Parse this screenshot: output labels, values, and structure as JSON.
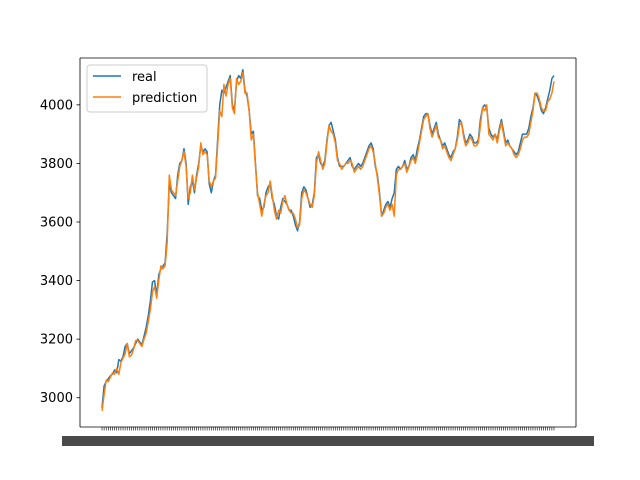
{
  "chart_data": {
    "type": "line",
    "title": "",
    "xlabel": "",
    "ylabel": "",
    "ylim": [
      2900,
      4160
    ],
    "yticks": [
      3000,
      3200,
      3400,
      3600,
      3800,
      4000
    ],
    "x_tick_labels_overlapping": true,
    "legend": {
      "placement": "top-left",
      "entries": [
        "real",
        "prediction"
      ]
    },
    "grid": false,
    "series": [
      {
        "name": "real",
        "color": "#1f77b4",
        "values": [
          2965,
          3040,
          3055,
          3065,
          3075,
          3080,
          3095,
          3085,
          3130,
          3125,
          3140,
          3175,
          3185,
          3150,
          3160,
          3170,
          3185,
          3200,
          3190,
          3180,
          3210,
          3240,
          3280,
          3330,
          3395,
          3400,
          3350,
          3420,
          3440,
          3450,
          3460,
          3560,
          3730,
          3700,
          3690,
          3680,
          3760,
          3800,
          3810,
          3850,
          3800,
          3660,
          3720,
          3740,
          3700,
          3760,
          3800,
          3860,
          3840,
          3850,
          3840,
          3730,
          3700,
          3740,
          3760,
          3880,
          4000,
          4050,
          4040,
          4060,
          4080,
          4100,
          4000,
          3980,
          4080,
          4100,
          4090,
          4120,
          4050,
          4030,
          3980,
          3900,
          3910,
          3800,
          3690,
          3680,
          3640,
          3650,
          3700,
          3720,
          3730,
          3680,
          3660,
          3620,
          3610,
          3650,
          3680,
          3670,
          3660,
          3640,
          3640,
          3620,
          3590,
          3570,
          3600,
          3700,
          3720,
          3710,
          3680,
          3650,
          3660,
          3700,
          3820,
          3830,
          3800,
          3790,
          3810,
          3880,
          3930,
          3940,
          3910,
          3880,
          3820,
          3790,
          3790,
          3790,
          3800,
          3810,
          3820,
          3790,
          3780,
          3790,
          3800,
          3790,
          3800,
          3820,
          3840,
          3860,
          3870,
          3850,
          3790,
          3760,
          3700,
          3620,
          3640,
          3660,
          3670,
          3650,
          3680,
          3700,
          3780,
          3790,
          3780,
          3790,
          3810,
          3780,
          3790,
          3820,
          3830,
          3810,
          3850,
          3880,
          3920,
          3960,
          3970,
          3970,
          3930,
          3900,
          3920,
          3940,
          3900,
          3880,
          3860,
          3870,
          3850,
          3830,
          3820,
          3840,
          3850,
          3890,
          3950,
          3940,
          3900,
          3870,
          3880,
          3900,
          3890,
          3870,
          3870,
          3880,
          3950,
          3990,
          4000,
          3990,
          3920,
          3900,
          3890,
          3900,
          3880,
          3920,
          3950,
          3910,
          3870,
          3880,
          3860,
          3850,
          3840,
          3830,
          3840,
          3870,
          3900,
          3900,
          3900,
          3920,
          3960,
          3990,
          4040,
          4030,
          4010,
          3980,
          3970,
          3990,
          4020,
          4050,
          4090,
          4100
        ]
      },
      {
        "name": "prediction",
        "color": "#ff7f0e",
        "values": [
          2955,
          3010,
          3060,
          3055,
          3070,
          3085,
          3080,
          3100,
          3080,
          3120,
          3135,
          3150,
          3185,
          3140,
          3145,
          3165,
          3195,
          3195,
          3185,
          3175,
          3200,
          3220,
          3260,
          3300,
          3360,
          3380,
          3340,
          3400,
          3450,
          3440,
          3450,
          3530,
          3760,
          3710,
          3700,
          3690,
          3740,
          3790,
          3810,
          3840,
          3790,
          3680,
          3700,
          3760,
          3710,
          3750,
          3790,
          3870,
          3830,
          3840,
          3830,
          3740,
          3720,
          3740,
          3750,
          3860,
          3980,
          3960,
          4070,
          4030,
          4070,
          4090,
          3990,
          3970,
          4090,
          4070,
          4080,
          4110,
          4040,
          4040,
          3980,
          3880,
          3900,
          3790,
          3700,
          3660,
          3620,
          3660,
          3690,
          3700,
          3740,
          3690,
          3640,
          3610,
          3640,
          3630,
          3670,
          3690,
          3660,
          3640,
          3630,
          3630,
          3610,
          3580,
          3590,
          3680,
          3710,
          3700,
          3680,
          3660,
          3650,
          3690,
          3800,
          3840,
          3810,
          3780,
          3800,
          3870,
          3930,
          3910,
          3900,
          3870,
          3810,
          3800,
          3780,
          3790,
          3800,
          3800,
          3810,
          3800,
          3770,
          3780,
          3790,
          3780,
          3790,
          3810,
          3830,
          3850,
          3860,
          3840,
          3800,
          3750,
          3690,
          3620,
          3630,
          3650,
          3660,
          3640,
          3660,
          3620,
          3760,
          3780,
          3780,
          3790,
          3800,
          3770,
          3790,
          3810,
          3820,
          3800,
          3830,
          3870,
          3910,
          3950,
          3960,
          3970,
          3920,
          3890,
          3910,
          3930,
          3890,
          3880,
          3850,
          3860,
          3840,
          3820,
          3810,
          3830,
          3850,
          3880,
          3930,
          3940,
          3890,
          3860,
          3870,
          3890,
          3880,
          3860,
          3860,
          3870,
          3930,
          3990,
          3980,
          4000,
          3900,
          3890,
          3880,
          3900,
          3870,
          3910,
          3940,
          3900,
          3860,
          3870,
          3860,
          3850,
          3830,
          3820,
          3830,
          3850,
          3880,
          3890,
          3890,
          3900,
          3940,
          3980,
          4040,
          4040,
          4020,
          3990,
          3980,
          3980,
          4010,
          4020,
          4040,
          4080
        ]
      }
    ]
  }
}
